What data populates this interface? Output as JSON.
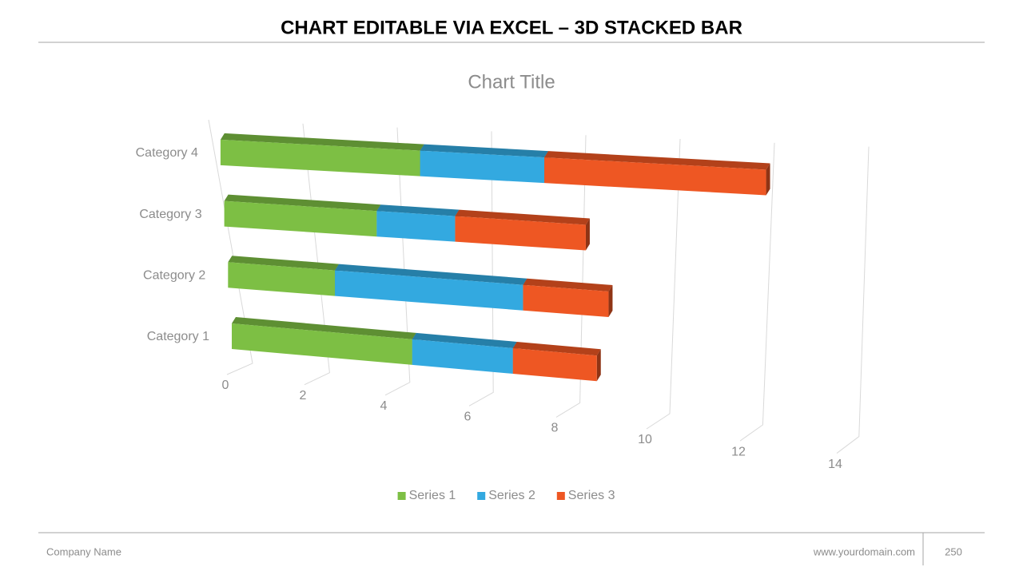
{
  "header": {
    "title": "CHART EDITABLE VIA EXCEL – 3D STACKED BAR"
  },
  "chart_data": {
    "type": "bar",
    "orientation": "horizontal",
    "stacked": true,
    "title": "Chart Title",
    "categories": [
      "Category 1",
      "Category 2",
      "Category 3",
      "Category 4"
    ],
    "series": [
      {
        "name": "Series 1",
        "color": "#7dbf44",
        "values": [
          4.3,
          2.5,
          3.5,
          4.5
        ]
      },
      {
        "name": "Series 2",
        "color": "#33a9e0",
        "values": [
          2.4,
          4.4,
          1.8,
          2.8
        ]
      },
      {
        "name": "Series 3",
        "color": "#ee5723",
        "values": [
          2,
          2,
          3,
          5
        ]
      }
    ],
    "xlim": [
      0,
      14
    ],
    "xticks": [
      0,
      2,
      4,
      6,
      8,
      10,
      12,
      14
    ],
    "grid": true,
    "legend": "bottom"
  },
  "footer": {
    "company": "Company Name",
    "website": "www.yourdomain.com",
    "page": "250"
  }
}
